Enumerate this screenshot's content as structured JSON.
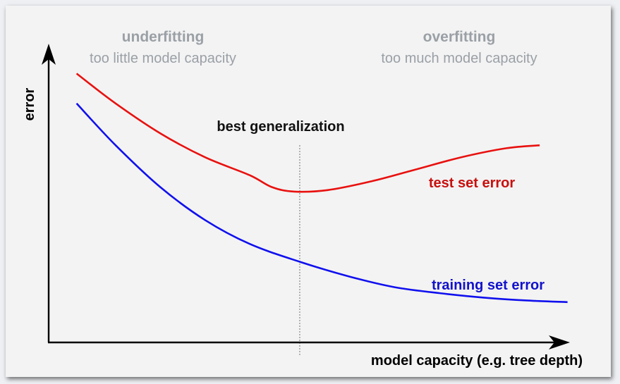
{
  "chart_data": {
    "type": "line",
    "xlabel": "model capacity (e.g. tree depth)",
    "ylabel": "error",
    "xlim": [
      0,
      1
    ],
    "ylim": [
      0,
      1
    ],
    "grid": false,
    "regions": {
      "left": {
        "title": "underfitting",
        "subtitle": "too little model capacity"
      },
      "right": {
        "title": "overfitting",
        "subtitle": "too much model capacity"
      }
    },
    "annotation": {
      "label": "best generalization",
      "x": 0.45
    },
    "series": [
      {
        "name": "test set error",
        "color": "#e8110f",
        "x": [
          0.05,
          0.12,
          0.2,
          0.28,
          0.36,
          0.4,
          0.44,
          0.5,
          0.58,
          0.66,
          0.74,
          0.82,
          0.88
        ],
        "y": [
          0.9,
          0.8,
          0.7,
          0.62,
          0.56,
          0.52,
          0.505,
          0.51,
          0.54,
          0.58,
          0.62,
          0.65,
          0.66
        ]
      },
      {
        "name": "training set error",
        "color": "#1010ee",
        "x": [
          0.05,
          0.12,
          0.2,
          0.28,
          0.36,
          0.45,
          0.54,
          0.62,
          0.7,
          0.78,
          0.86,
          0.93
        ],
        "y": [
          0.8,
          0.66,
          0.52,
          0.41,
          0.33,
          0.27,
          0.22,
          0.185,
          0.165,
          0.15,
          0.14,
          0.135
        ]
      }
    ]
  }
}
